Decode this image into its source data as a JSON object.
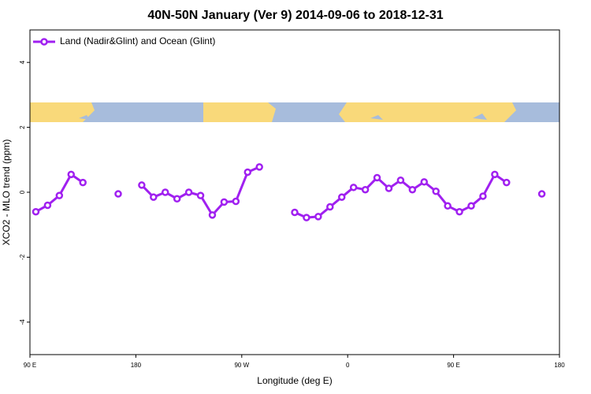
{
  "chart_data": {
    "type": "line",
    "title": "40N-50N January (Ver 9)   2014-09-06 to 2018-12-31",
    "xlabel": "Longitude (deg E)",
    "ylabel": "XCO2 - MLO trend (ppm)",
    "x": [
      95,
      105,
      115,
      125,
      135,
      145,
      155,
      165,
      175,
      185,
      195,
      205,
      215,
      225,
      235,
      245,
      255,
      265,
      275,
      285,
      295,
      305,
      315,
      325,
      335,
      345,
      355,
      365,
      375,
      385,
      395,
      405,
      415,
      425,
      435,
      445,
      455,
      465,
      475,
      485,
      495,
      505,
      515,
      525
    ],
    "series": [
      {
        "name": "Land (Nadir&Glint) and Ocean (Glint)",
        "color": "#a020f0",
        "values": [
          -0.6,
          -0.4,
          -0.1,
          0.55,
          0.3,
          null,
          null,
          -0.05,
          null,
          0.22,
          -0.15,
          0,
          -0.2,
          0,
          -0.1,
          -0.7,
          -0.3,
          -0.28,
          0.62,
          0.78,
          null,
          null,
          -0.62,
          -0.78,
          -0.75,
          -0.45,
          -0.15,
          0.15,
          0.08,
          0.45,
          0.12,
          0.37,
          0.08,
          0.32,
          0.03,
          -0.42,
          -0.6,
          -0.42,
          -0.12,
          0.55,
          0.3,
          null,
          null,
          -0.05
        ]
      }
    ],
    "xlim": [
      90,
      540
    ],
    "xticks": [
      {
        "value": 90,
        "label": "90 E"
      },
      {
        "value": 180,
        "label": "180"
      },
      {
        "value": 270,
        "label": "90 W"
      },
      {
        "value": 360,
        "label": "0"
      },
      {
        "value": 450,
        "label": "90 E"
      },
      {
        "value": 540,
        "label": "180"
      }
    ],
    "ylim": [
      -5,
      5
    ],
    "yticks": [
      -4,
      -2,
      0,
      2,
      4
    ],
    "legend": "top-left"
  }
}
